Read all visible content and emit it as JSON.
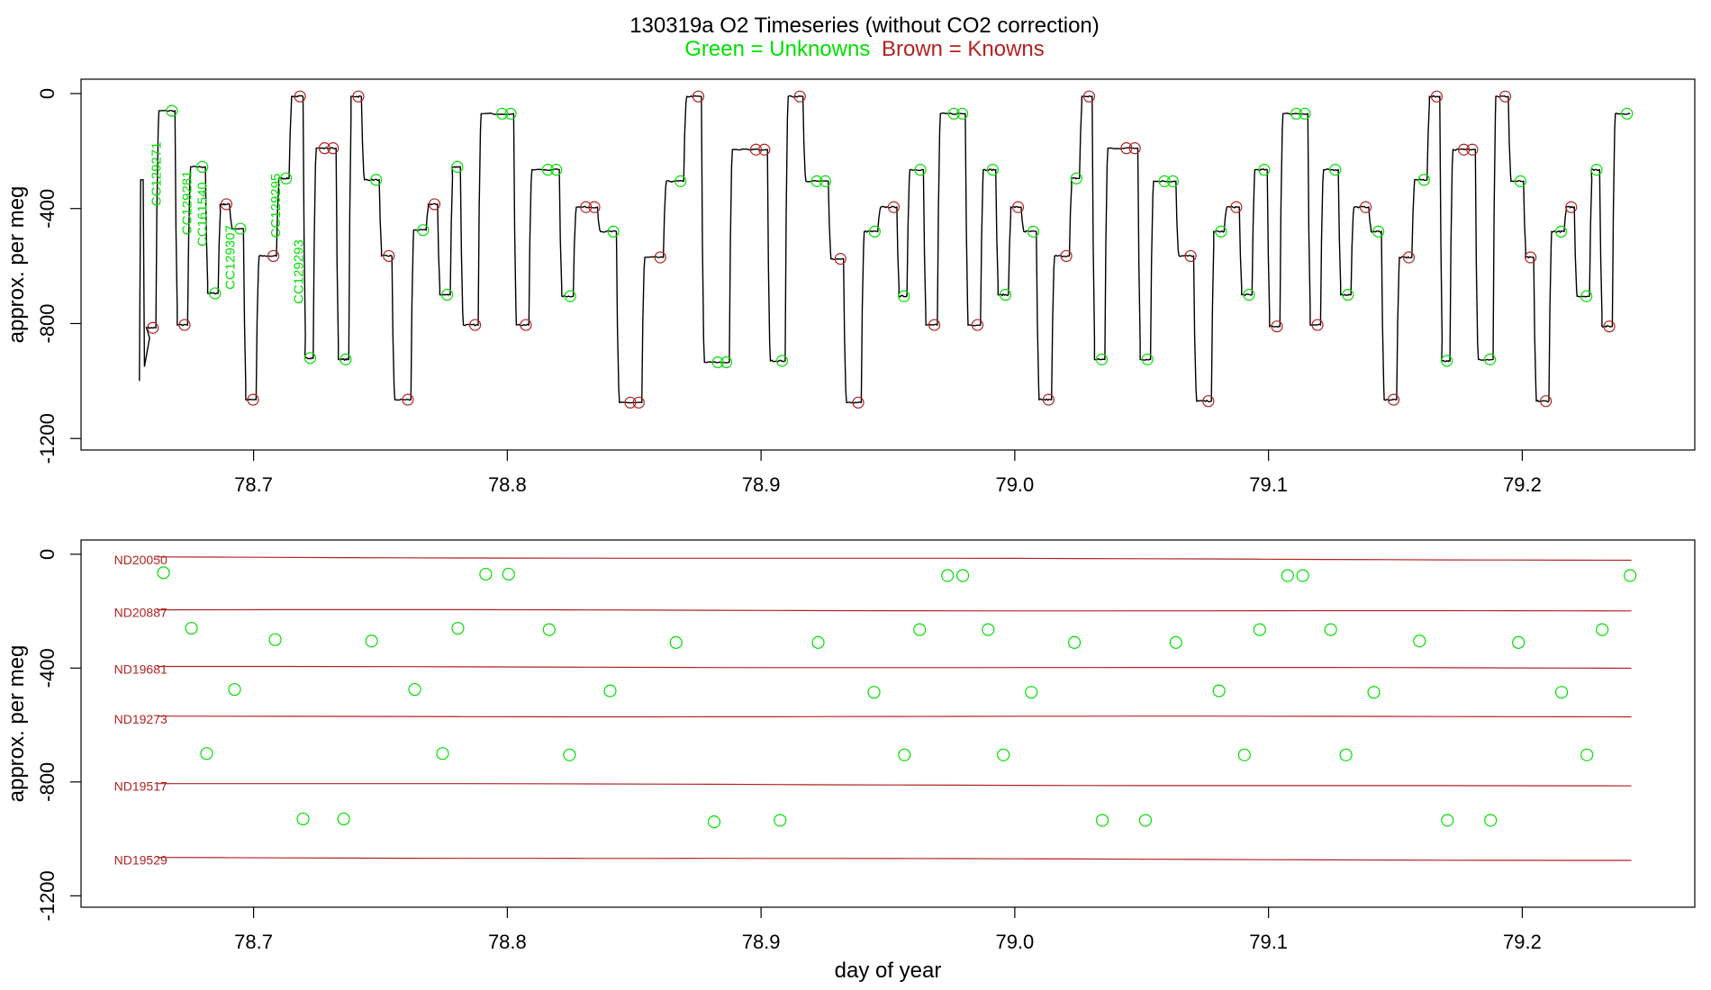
{
  "page": {
    "title": "130319a   O2 Timeseries (without CO2 correction)",
    "subtitle_green": "Green = Unknowns",
    "subtitle_brown": "Brown = Knowns"
  },
  "colors": {
    "unknown": "#00e000",
    "known": "#b22222",
    "trace": "#000000",
    "frame": "#000000"
  },
  "chart_data": [
    {
      "type": "line",
      "panel": "top",
      "xlabel": "",
      "ylabel": "approx. per meg",
      "xlim": [
        78.632,
        79.268
      ],
      "ylim": [
        -1240,
        50
      ],
      "xticks": [
        78.7,
        78.8,
        78.9,
        79.0,
        79.1,
        79.2
      ],
      "xtick_labels": [
        "78.7",
        "78.8",
        "78.9",
        "79.0",
        "79.1",
        "79.2"
      ],
      "yticks": [
        0,
        -400,
        -800,
        -1200
      ],
      "ytick_labels": [
        "0",
        "-400",
        "-800",
        "-1200"
      ],
      "trace": {
        "start": [
          [
            78.655,
            -1000
          ],
          [
            78.6555,
            -300
          ],
          [
            78.6565,
            -300
          ],
          [
            78.657,
            -950
          ],
          [
            78.659,
            -850
          ]
        ],
        "plateaus": [
          [
            78.657,
            78.6615,
            -815,
            "k"
          ],
          [
            78.6615,
            78.669,
            -60,
            "u"
          ],
          [
            78.669,
            78.674,
            -805,
            "k"
          ],
          [
            78.674,
            78.681,
            -255,
            "u"
          ],
          [
            78.681,
            78.686,
            -695,
            "u"
          ],
          [
            78.686,
            78.6905,
            -385,
            "k"
          ],
          [
            78.6905,
            78.696,
            -470,
            "u"
          ],
          [
            78.696,
            78.701,
            -1065,
            "k"
          ],
          [
            78.701,
            78.709,
            -565,
            "k"
          ],
          [
            78.709,
            78.714,
            -295,
            "u"
          ],
          [
            78.714,
            78.7195,
            -10,
            "k"
          ],
          [
            78.7195,
            78.7235,
            -920,
            "u"
          ],
          [
            78.7235,
            78.7325,
            -190,
            "k"
          ],
          [
            78.7325,
            78.7375,
            -925,
            "u"
          ],
          [
            78.7375,
            78.7425,
            -10,
            "k"
          ],
          [
            78.7425,
            78.7495,
            -300,
            "u"
          ],
          [
            78.7495,
            78.7545,
            -565,
            "k"
          ],
          [
            78.7545,
            78.762,
            -1065,
            "k"
          ],
          [
            78.762,
            78.768,
            -475,
            "u"
          ],
          [
            78.768,
            78.7725,
            -385,
            "k"
          ],
          [
            78.7725,
            78.7775,
            -700,
            "u"
          ],
          [
            78.7775,
            78.7815,
            -255,
            "u"
          ],
          [
            78.7815,
            78.7885,
            -805,
            "k"
          ],
          [
            78.7885,
            78.8025,
            -70,
            "u"
          ],
          [
            78.8025,
            78.8085,
            -805,
            "k"
          ],
          [
            78.8085,
            78.8205,
            -265,
            "u"
          ],
          [
            78.8205,
            78.826,
            -705,
            "u"
          ],
          [
            78.826,
            78.8355,
            -395,
            "k"
          ],
          [
            78.8355,
            78.843,
            -480,
            "u"
          ],
          [
            78.843,
            78.853,
            -1075,
            "k"
          ],
          [
            78.853,
            78.8615,
            -570,
            "k"
          ],
          [
            78.8615,
            78.8695,
            -305,
            "u"
          ],
          [
            78.8695,
            78.8765,
            -10,
            "k"
          ],
          [
            78.8765,
            78.8875,
            -935,
            "u"
          ],
          [
            78.8875,
            78.9025,
            -195,
            "k"
          ],
          [
            78.9025,
            78.9095,
            -930,
            "u"
          ],
          [
            78.9095,
            78.9165,
            -10,
            "k"
          ],
          [
            78.9165,
            78.9265,
            -305,
            "u"
          ],
          [
            78.9265,
            78.9325,
            -575,
            "k"
          ],
          [
            78.9325,
            78.9395,
            -1075,
            "k"
          ],
          [
            78.9395,
            78.946,
            -480,
            "u"
          ],
          [
            78.946,
            78.9535,
            -395,
            "k"
          ],
          [
            78.9535,
            78.9575,
            -705,
            "u"
          ],
          [
            78.9575,
            78.964,
            -265,
            "u"
          ],
          [
            78.964,
            78.9695,
            -805,
            "k"
          ],
          [
            78.9695,
            78.9805,
            -70,
            "u"
          ],
          [
            78.9805,
            78.9865,
            -805,
            "k"
          ],
          [
            78.9865,
            78.9925,
            -265,
            "u"
          ],
          [
            78.9925,
            78.9975,
            -700,
            "u"
          ],
          [
            78.9975,
            79.0025,
            -395,
            "k"
          ],
          [
            79.0025,
            79.0085,
            -480,
            "u"
          ],
          [
            79.0085,
            79.0145,
            -1065,
            "k"
          ],
          [
            79.0145,
            79.0215,
            -565,
            "k"
          ],
          [
            79.0215,
            79.0255,
            -295,
            "u"
          ],
          [
            79.0255,
            79.0305,
            -10,
            "k"
          ],
          [
            79.0305,
            79.0355,
            -925,
            "u"
          ],
          [
            79.0355,
            79.0485,
            -190,
            "k"
          ],
          [
            79.0485,
            79.0535,
            -925,
            "u"
          ],
          [
            79.0535,
            79.0635,
            -305,
            "u"
          ],
          [
            79.0635,
            79.0705,
            -565,
            "k"
          ],
          [
            79.0705,
            79.0775,
            -1070,
            "k"
          ],
          [
            79.0775,
            79.0825,
            -480,
            "u"
          ],
          [
            79.0825,
            79.0885,
            -395,
            "k"
          ],
          [
            79.0885,
            79.0935,
            -700,
            "u"
          ],
          [
            79.0935,
            79.0995,
            -265,
            "u"
          ],
          [
            79.0995,
            79.1045,
            -810,
            "k"
          ],
          [
            79.1045,
            79.1155,
            -70,
            "u"
          ],
          [
            79.1155,
            79.1205,
            -805,
            "k"
          ],
          [
            79.1205,
            79.1275,
            -265,
            "u"
          ],
          [
            79.1275,
            79.1325,
            -700,
            "u"
          ],
          [
            79.1325,
            79.1395,
            -395,
            "k"
          ],
          [
            79.1395,
            79.1445,
            -480,
            "u"
          ],
          [
            79.1445,
            79.1505,
            -1065,
            "k"
          ],
          [
            79.1505,
            79.1565,
            -570,
            "k"
          ],
          [
            79.1565,
            79.1625,
            -300,
            "u"
          ],
          [
            79.1625,
            79.1675,
            -10,
            "k"
          ],
          [
            79.1675,
            79.1715,
            -930,
            "u"
          ],
          [
            79.1715,
            79.1815,
            -195,
            "k"
          ],
          [
            79.1815,
            79.1885,
            -925,
            "u"
          ],
          [
            79.1885,
            79.1945,
            -10,
            "k"
          ],
          [
            79.1945,
            79.2005,
            -305,
            "u"
          ],
          [
            79.2005,
            79.2045,
            -570,
            "k"
          ],
          [
            79.2045,
            79.2105,
            -1070,
            "k"
          ],
          [
            79.2105,
            79.2165,
            -480,
            "u"
          ],
          [
            79.2165,
            79.2205,
            -395,
            "k"
          ],
          [
            79.2205,
            79.2265,
            -705,
            "u"
          ],
          [
            79.2265,
            79.2305,
            -265,
            "u"
          ],
          [
            79.2305,
            79.2355,
            -810,
            "k"
          ],
          [
            79.2355,
            79.2425,
            -70,
            "u"
          ]
        ]
      },
      "sample_labels": [
        {
          "text": "CC129271",
          "x": 78.6635,
          "y": -280
        },
        {
          "text": "CC129281",
          "x": 78.6755,
          "y": -380
        },
        {
          "text": "CC161540",
          "x": 78.6815,
          "y": -420
        },
        {
          "text": "CC129307",
          "x": 78.6925,
          "y": -570
        },
        {
          "text": "CC129295",
          "x": 78.7105,
          "y": -390
        },
        {
          "text": "CC129293",
          "x": 78.7195,
          "y": -620
        }
      ]
    },
    {
      "type": "scatter",
      "panel": "bottom",
      "xlabel": "day of year",
      "ylabel": "approx. per meg",
      "xlim": [
        78.632,
        79.268
      ],
      "ylim": [
        -1240,
        50
      ],
      "xticks": [
        78.7,
        78.8,
        78.9,
        79.0,
        79.1,
        79.2
      ],
      "xtick_labels": [
        "78.7",
        "78.8",
        "78.9",
        "79.0",
        "79.1",
        "79.2"
      ],
      "yticks": [
        0,
        -400,
        -800,
        -1200
      ],
      "ytick_labels": [
        "0",
        "-400",
        "-800",
        "-1200"
      ],
      "standards": [
        {
          "name": "ND20050",
          "y_start": -10,
          "y_end": -20
        },
        {
          "name": "ND20887",
          "y_start": -195,
          "y_end": -200
        },
        {
          "name": "ND19681",
          "y_start": -395,
          "y_end": -400
        },
        {
          "name": "ND19273",
          "y_start": -570,
          "y_end": -570
        },
        {
          "name": "ND19517",
          "y_start": -805,
          "y_end": -815
        },
        {
          "name": "ND19529",
          "y_start": -1065,
          "y_end": -1075
        }
      ],
      "standards_x_range": [
        78.662,
        79.243
      ],
      "points": [
        [
          78.6645,
          -65
        ],
        [
          78.6755,
          -260
        ],
        [
          78.6815,
          -700
        ],
        [
          78.6925,
          -475
        ],
        [
          78.7085,
          -300
        ],
        [
          78.7195,
          -930
        ],
        [
          78.7355,
          -930
        ],
        [
          78.7465,
          -305
        ],
        [
          78.7635,
          -475
        ],
        [
          78.7745,
          -700
        ],
        [
          78.7805,
          -260
        ],
        [
          78.7915,
          -70
        ],
        [
          78.8005,
          -70
        ],
        [
          78.8165,
          -265
        ],
        [
          78.8245,
          -705
        ],
        [
          78.8405,
          -480
        ],
        [
          78.8665,
          -310
        ],
        [
          78.8815,
          -940
        ],
        [
          78.9075,
          -935
        ],
        [
          78.9225,
          -310
        ],
        [
          78.9445,
          -485
        ],
        [
          78.9565,
          -705
        ],
        [
          78.9625,
          -265
        ],
        [
          78.9735,
          -75
        ],
        [
          78.9795,
          -75
        ],
        [
          78.9895,
          -265
        ],
        [
          78.9955,
          -705
        ],
        [
          79.0065,
          -485
        ],
        [
          79.0235,
          -310
        ],
        [
          79.0345,
          -935
        ],
        [
          79.0515,
          -935
        ],
        [
          79.0635,
          -310
        ],
        [
          79.0805,
          -480
        ],
        [
          79.0905,
          -705
        ],
        [
          79.0965,
          -265
        ],
        [
          79.1075,
          -75
        ],
        [
          79.1135,
          -75
        ],
        [
          79.1245,
          -265
        ],
        [
          79.1305,
          -705
        ],
        [
          79.1415,
          -485
        ],
        [
          79.1595,
          -305
        ],
        [
          79.1705,
          -935
        ],
        [
          79.1875,
          -935
        ],
        [
          79.1985,
          -310
        ],
        [
          79.2155,
          -485
        ],
        [
          79.2255,
          -705
        ],
        [
          79.2315,
          -265
        ],
        [
          79.2425,
          -75
        ]
      ]
    }
  ]
}
